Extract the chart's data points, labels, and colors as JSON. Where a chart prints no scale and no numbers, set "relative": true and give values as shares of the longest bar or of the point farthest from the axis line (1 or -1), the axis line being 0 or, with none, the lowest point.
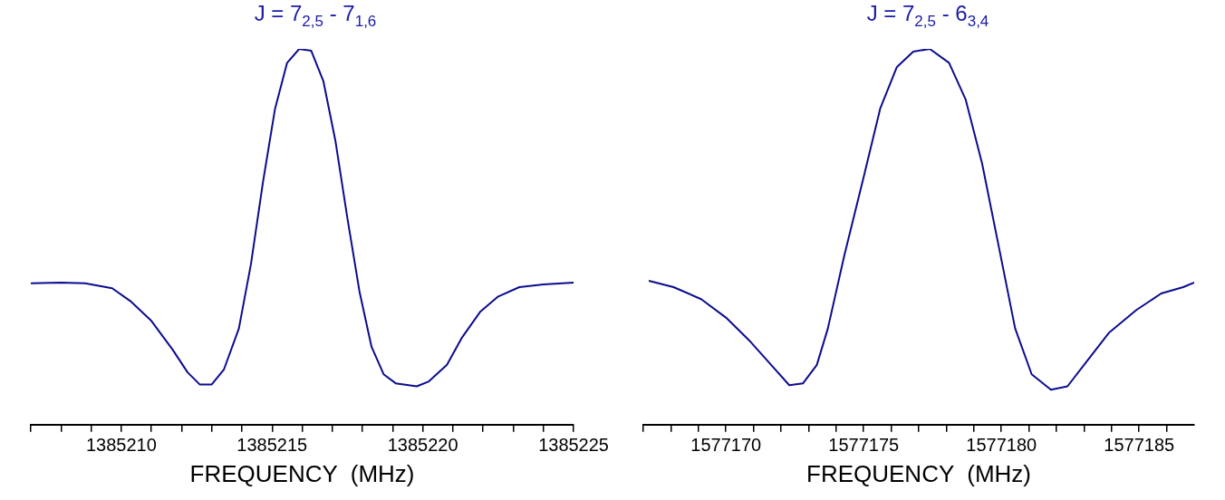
{
  "chart_data": [
    {
      "type": "line",
      "title": "J = 7$_{2,5}$ - 7$_{1,6}$",
      "xlabel": "FREQUENCY  (MHz)",
      "relative": true,
      "tick_labels": "x",
      "xlim": [
        1385207,
        1385225
      ],
      "xticks": [
        {
          "value": 1385207,
          "label": null
        },
        {
          "value": 1385208,
          "label": null
        },
        {
          "value": 1385209,
          "label": null
        },
        1385210,
        {
          "value": 1385211,
          "label": null
        },
        {
          "value": 1385212,
          "label": null
        },
        {
          "value": 1385213,
          "label": null
        },
        {
          "value": 1385214,
          "label": null
        },
        1385215,
        {
          "value": 1385216,
          "label": null
        },
        {
          "value": 1385217,
          "label": null
        },
        {
          "value": 1385218,
          "label": null
        },
        {
          "value": 1385219,
          "label": null
        },
        1385220,
        {
          "value": 1385221,
          "label": null
        },
        {
          "value": 1385222,
          "label": null
        },
        {
          "value": 1385223,
          "label": null
        },
        {
          "value": 1385224,
          "label": null
        },
        1385225
      ],
      "series": [
        {
          "color": "#0c0c8e",
          "x": [
            1385207.0,
            1385208.0,
            1385208.8,
            1385209.7,
            1385210.3,
            1385211.0,
            1385211.7,
            1385212.2,
            1385212.6,
            1385213.0,
            1385213.4,
            1385213.9,
            1385214.3,
            1385214.7,
            1385215.1,
            1385215.5,
            1385215.9,
            1385216.3,
            1385216.7,
            1385217.1,
            1385217.5,
            1385217.9,
            1385218.3,
            1385218.7,
            1385219.1,
            1385219.8,
            1385220.2,
            1385220.8,
            1385221.3,
            1385221.9,
            1385222.5,
            1385223.2,
            1385224.0,
            1385225.0
          ],
          "values": [
            0.376,
            0.378,
            0.376,
            0.363,
            0.329,
            0.276,
            0.2,
            0.139,
            0.107,
            0.107,
            0.146,
            0.256,
            0.427,
            0.646,
            0.841,
            0.963,
            1.0,
            0.995,
            0.915,
            0.756,
            0.549,
            0.354,
            0.207,
            0.134,
            0.11,
            0.102,
            0.115,
            0.159,
            0.232,
            0.3,
            0.341,
            0.366,
            0.373,
            0.378
          ]
        }
      ]
    },
    {
      "type": "line",
      "title": "J = 7$_{2,5}$  -  6$_{3,4}$",
      "xlabel": "FREQUENCY  (MHz)",
      "relative": true,
      "tick_labels": "x",
      "xlim": [
        1577167,
        1577187
      ],
      "xticks": [
        {
          "value": 1577167,
          "label": null
        },
        {
          "value": 1577168,
          "label": null
        },
        {
          "value": 1577169,
          "label": null
        },
        1577170,
        {
          "value": 1577171,
          "label": null
        },
        {
          "value": 1577172,
          "label": null
        },
        {
          "value": 1577173,
          "label": null
        },
        {
          "value": 1577174,
          "label": null
        },
        1577175,
        {
          "value": 1577176,
          "label": null
        },
        {
          "value": 1577177,
          "label": null
        },
        {
          "value": 1577178,
          "label": null
        },
        {
          "value": 1577179,
          "label": null
        },
        1577180,
        {
          "value": 1577181,
          "label": null
        },
        {
          "value": 1577182,
          "label": null
        },
        {
          "value": 1577183,
          "label": null
        },
        {
          "value": 1577184,
          "label": null
        },
        1577185,
        {
          "value": 1577186,
          "label": null
        }
      ],
      "series": [
        {
          "color": "#0c0c8e",
          "x": [
            1577167.2,
            1577168.1,
            1577169.1,
            1577170.0,
            1577170.9,
            1577171.7,
            1577172.3,
            1577172.8,
            1577173.3,
            1577173.7,
            1577174.3,
            1577175.0,
            1577175.6,
            1577176.2,
            1577176.8,
            1577177.4,
            1577178.1,
            1577178.7,
            1577179.3,
            1577179.9,
            1577180.5,
            1577181.1,
            1577181.8,
            1577182.4,
            1577183.0,
            1577183.9,
            1577184.9,
            1577185.8,
            1577186.6,
            1577187.0
          ],
          "values": [
            0.383,
            0.366,
            0.334,
            0.285,
            0.22,
            0.154,
            0.105,
            0.11,
            0.159,
            0.256,
            0.451,
            0.659,
            0.841,
            0.951,
            0.993,
            1.0,
            0.963,
            0.866,
            0.695,
            0.476,
            0.256,
            0.134,
            0.093,
            0.102,
            0.159,
            0.244,
            0.305,
            0.349,
            0.366,
            0.378
          ]
        }
      ]
    }
  ]
}
